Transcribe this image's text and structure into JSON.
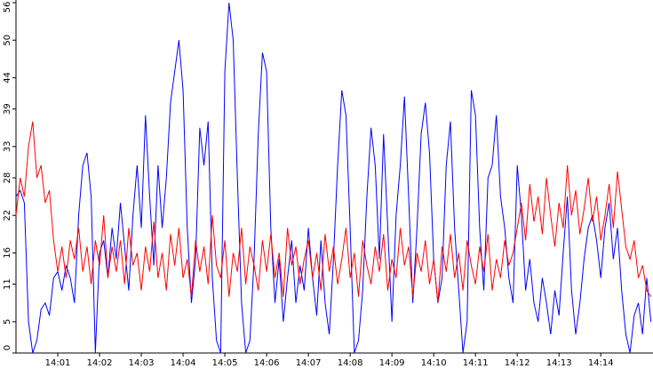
{
  "chart_data": {
    "type": "line",
    "x": [
      0,
      0.1,
      0.2,
      0.3,
      0.4,
      0.5,
      0.6,
      0.7,
      0.8,
      0.9,
      1,
      1.1,
      1.2,
      1.3,
      1.4,
      1.5,
      1.6,
      1.7,
      1.8,
      1.9,
      2,
      2.1,
      2.2,
      2.3,
      2.4,
      2.5,
      2.6,
      2.7,
      2.8,
      2.9,
      3,
      3.1,
      3.2,
      3.3,
      3.4,
      3.5,
      3.6,
      3.7,
      3.8,
      3.9,
      4,
      4.1,
      4.2,
      4.3,
      4.4,
      4.5,
      4.6,
      4.7,
      4.8,
      4.9,
      5,
      5.1,
      5.2,
      5.3,
      5.4,
      5.5,
      5.6,
      5.7,
      5.8,
      5.9,
      6,
      6.1,
      6.2,
      6.3,
      6.4,
      6.5,
      6.6,
      6.7,
      6.8,
      6.9,
      7,
      7.1,
      7.2,
      7.3,
      7.4,
      7.5,
      7.6,
      7.7,
      7.8,
      7.9,
      8,
      8.1,
      8.2,
      8.3,
      8.4,
      8.5,
      8.6,
      8.7,
      8.8,
      8.9,
      9,
      9.1,
      9.2,
      9.3,
      9.4,
      9.5,
      9.6,
      9.7,
      9.8,
      9.9,
      10,
      10.1,
      10.2,
      10.3,
      10.4,
      10.5,
      10.6,
      10.7,
      10.8,
      10.9,
      11,
      11.1,
      11.2,
      11.3,
      11.4,
      11.5,
      11.6,
      11.7,
      11.8,
      11.9,
      12,
      12.1,
      12.2,
      12.3,
      12.4,
      12.5,
      12.6,
      12.7,
      12.8,
      12.9,
      13,
      13.1,
      13.2,
      13.3,
      13.4,
      13.5,
      13.6,
      13.7,
      13.8,
      13.9,
      14,
      14.1,
      14.2,
      14.3,
      14.4,
      14.5,
      14.6,
      14.7,
      14.8,
      14.9,
      15,
      15.1,
      15.2
    ],
    "series": [
      {
        "color": "#0000ff",
        "values": [
          25,
          26,
          24,
          5,
          0,
          2,
          7,
          8,
          6,
          12,
          13,
          10,
          14,
          12,
          8,
          22,
          30,
          32,
          25,
          0,
          16,
          18,
          12,
          20,
          15,
          24,
          17,
          10,
          22,
          30,
          20,
          38,
          25,
          14,
          30,
          20,
          28,
          40,
          45,
          50,
          42,
          20,
          8,
          15,
          36,
          30,
          37,
          12,
          2,
          0,
          45,
          56,
          50,
          28,
          8,
          0,
          2,
          15,
          35,
          48,
          45,
          20,
          8,
          15,
          5,
          12,
          18,
          8,
          14,
          10,
          20,
          12,
          6,
          18,
          8,
          3,
          15,
          30,
          42,
          38,
          20,
          0,
          2,
          10,
          25,
          36,
          30,
          15,
          35,
          20,
          5,
          22,
          30,
          41,
          25,
          8,
          20,
          35,
          40,
          32,
          15,
          8,
          12,
          30,
          37,
          20,
          10,
          0,
          5,
          42,
          38,
          20,
          10,
          28,
          30,
          38,
          25,
          20,
          12,
          8,
          30,
          22,
          10,
          15,
          8,
          5,
          12,
          8,
          3,
          10,
          6,
          16,
          25,
          10,
          3,
          8,
          15,
          20,
          22,
          18,
          12,
          20,
          24,
          15,
          20,
          10,
          3,
          0,
          6,
          8,
          3,
          12,
          5
        ]
      },
      {
        "color": "#ff0000",
        "values": [
          22,
          28,
          25,
          33,
          37,
          28,
          30,
          24,
          26,
          18,
          13,
          17,
          12,
          18,
          15,
          20,
          13,
          17,
          11,
          18,
          14,
          22,
          12,
          17,
          13,
          18,
          11,
          20,
          14,
          16,
          10,
          17,
          13,
          21,
          12,
          16,
          10,
          19,
          14,
          20,
          12,
          15,
          9,
          18,
          13,
          17,
          11,
          22,
          14,
          12,
          18,
          9,
          16,
          13,
          20,
          11,
          17,
          14,
          10,
          18,
          13,
          19,
          12,
          16,
          9,
          20,
          14,
          17,
          11,
          15,
          18,
          12,
          16,
          10,
          19,
          13,
          17,
          11,
          15,
          20,
          12,
          16,
          9,
          18,
          14,
          11,
          17,
          13,
          19,
          10,
          15,
          12,
          20,
          14,
          17,
          9,
          16,
          13,
          18,
          11,
          15,
          8,
          17,
          13,
          19,
          12,
          16,
          10,
          18,
          14,
          11,
          17,
          13,
          19,
          10,
          15,
          12,
          18,
          14,
          16,
          20,
          24,
          18,
          27,
          21,
          25,
          19,
          28,
          22,
          17,
          24,
          20,
          30,
          22,
          26,
          19,
          23,
          28,
          21,
          25,
          18,
          22,
          27,
          20,
          29,
          23,
          17,
          15,
          18,
          12,
          14,
          10,
          9
        ]
      }
    ],
    "xlim": [
      0,
      15.25
    ],
    "xticks": [
      {
        "value": 1,
        "label": "14:01"
      },
      {
        "value": 2,
        "label": "14:02"
      },
      {
        "value": 3,
        "label": "14:03"
      },
      {
        "value": 4,
        "label": "14:04"
      },
      {
        "value": 5,
        "label": "14:05"
      },
      {
        "value": 6,
        "label": "14:06"
      },
      {
        "value": 7,
        "label": "14:07"
      },
      {
        "value": 8,
        "label": "14:08"
      },
      {
        "value": 9,
        "label": "14:09"
      },
      {
        "value": 10,
        "label": "14:10"
      },
      {
        "value": 11,
        "label": "14:11"
      },
      {
        "value": 12,
        "label": "14:12"
      },
      {
        "value": 13,
        "label": "14:13"
      },
      {
        "value": 14,
        "label": "14:14"
      }
    ],
    "ylim": [
      0,
      56
    ],
    "yticks": [
      0,
      5,
      11,
      16,
      22,
      28,
      33,
      39,
      44,
      50,
      56
    ]
  }
}
